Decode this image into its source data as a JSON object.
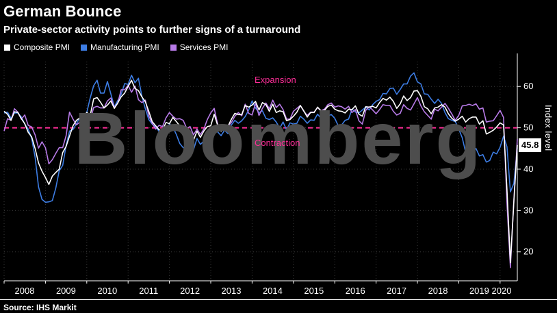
{
  "header": {
    "title": "German Bounce",
    "subtitle": "Private-sector activity points to further signs of a turnaround"
  },
  "source": "Source: IHS Markit",
  "chart_data": {
    "type": "line",
    "title": "German Bounce",
    "subtitle": "Private-sector activity points to further signs of a turnaround",
    "x_unit": "month",
    "x_start": "2008-01",
    "x_end": "2020-06",
    "x_tick_labels": [
      "2008",
      "2009",
      "2010",
      "2011",
      "2012",
      "2013",
      "2014",
      "2015",
      "2016",
      "2017",
      "2018",
      "2019",
      "2020"
    ],
    "ylabel": "Index level",
    "yticks": [
      20,
      30,
      40,
      50,
      60
    ],
    "ylim": [
      13,
      66
    ],
    "grid": "dotted",
    "legend_position": "top-left",
    "threshold": {
      "value": 50,
      "label_above": "Expansion",
      "label_below": "Contraction",
      "color": "#ff2e99"
    },
    "last_value_badge": "45.8",
    "watermark": "Bloomberg",
    "series": [
      {
        "name": "Composite PMI",
        "color": "#ffffff",
        "values": [
          54.0,
          53.3,
          51.8,
          53.9,
          53.7,
          52.2,
          51.0,
          48.9,
          47.8,
          45.0,
          41.5,
          39.5,
          38.0,
          36.3,
          38.3,
          39.2,
          40.0,
          44.0,
          45.5,
          48.0,
          50.5,
          51.8,
          52.4,
          52.7,
          53.7,
          53.0,
          57.0,
          57.3,
          56.2,
          54.8,
          55.5,
          56.5,
          54.7,
          56.0,
          57.5,
          58.4,
          60.0,
          61.5,
          59.5,
          59.0,
          57.5,
          56.3,
          54.0,
          51.5,
          50.5,
          49.5,
          49.4,
          51.3,
          51.0,
          52.5,
          51.5,
          50.5,
          49.3,
          48.1,
          47.5,
          47.0,
          49.2,
          47.7,
          49.2,
          50.3,
          50.5,
          53.3,
          50.6,
          49.2,
          50.2,
          50.4,
          52.1,
          53.5,
          53.2,
          53.2,
          55.4,
          55.0,
          55.5,
          56.4,
          54.3,
          56.1,
          55.6,
          54.0,
          55.7,
          53.7,
          54.1,
          53.9,
          51.7,
          52.0,
          52.8,
          53.8,
          55.4,
          54.1,
          52.6,
          53.7,
          53.7,
          55.0,
          54.1,
          54.2,
          55.2,
          55.5,
          54.5,
          54.1,
          54.0,
          53.6,
          54.5,
          54.4,
          55.3,
          53.3,
          52.8,
          55.1,
          55.0,
          55.2,
          54.8,
          56.1,
          57.1,
          56.7,
          57.4,
          56.4,
          54.7,
          55.8,
          57.7,
          56.6,
          57.3,
          58.9,
          59.0,
          57.6,
          55.1,
          54.6,
          53.4,
          54.8,
          55.0,
          55.6,
          55.0,
          53.4,
          52.3,
          51.6,
          52.1,
          52.8,
          51.4,
          52.2,
          52.6,
          52.6,
          50.9,
          51.7,
          48.5,
          48.9,
          49.4,
          50.2,
          51.2,
          50.7,
          35.0,
          17.4,
          32.3,
          45.8
        ]
      },
      {
        "name": "Manufacturing PMI",
        "color": "#3d7de4",
        "values": [
          53.6,
          53.8,
          52.3,
          53.6,
          53.6,
          52.6,
          50.9,
          49.7,
          47.4,
          42.9,
          35.7,
          32.7,
          32.0,
          32.1,
          32.4,
          35.4,
          39.6,
          40.9,
          45.7,
          49.2,
          49.6,
          51.0,
          52.4,
          52.7,
          53.7,
          57.2,
          60.2,
          61.5,
          58.4,
          58.4,
          61.2,
          58.2,
          55.1,
          56.6,
          58.1,
          60.7,
          60.5,
          62.7,
          60.9,
          62.0,
          57.7,
          54.6,
          52.0,
          50.9,
          50.3,
          49.1,
          47.9,
          48.4,
          51.0,
          50.2,
          48.4,
          46.2,
          45.2,
          45.0,
          43.0,
          44.7,
          47.4,
          46.0,
          46.8,
          46.0,
          49.8,
          50.3,
          49.0,
          48.1,
          49.4,
          48.6,
          50.7,
          51.8,
          51.1,
          51.7,
          52.7,
          54.3,
          56.5,
          54.8,
          53.7,
          54.1,
          52.3,
          52.0,
          52.4,
          51.4,
          49.9,
          51.4,
          49.5,
          51.2,
          50.9,
          51.1,
          52.8,
          52.1,
          51.1,
          51.9,
          51.8,
          53.3,
          52.3,
          52.1,
          52.9,
          53.2,
          52.3,
          50.5,
          50.7,
          51.8,
          52.1,
          54.5,
          53.8,
          53.6,
          54.3,
          55.0,
          54.3,
          55.6,
          56.4,
          56.8,
          58.3,
          58.2,
          59.5,
          59.6,
          58.1,
          59.3,
          60.6,
          60.6,
          62.5,
          63.3,
          61.1,
          60.6,
          58.2,
          58.1,
          56.9,
          55.9,
          56.9,
          55.9,
          53.7,
          52.2,
          51.8,
          51.5,
          49.7,
          47.6,
          44.1,
          44.4,
          44.3,
          45.0,
          43.2,
          43.5,
          41.7,
          42.1,
          44.1,
          43.7,
          45.3,
          48.0,
          45.4,
          34.5,
          36.6,
          45.2
        ]
      },
      {
        "name": "Services PMI",
        "color": "#b87be8",
        "values": [
          49.2,
          52.2,
          51.8,
          54.6,
          53.8,
          52.1,
          53.1,
          50.6,
          50.2,
          48.3,
          45.1,
          46.6,
          45.2,
          41.3,
          42.3,
          43.8,
          45.2,
          45.2,
          48.1,
          53.8,
          52.1,
          50.7,
          51.4,
          52.7,
          52.2,
          51.9,
          54.9,
          55.2,
          54.8,
          54.8,
          56.5,
          57.2,
          54.9,
          56.0,
          59.2,
          59.2,
          60.3,
          58.6,
          60.1,
          56.8,
          56.1,
          56.7,
          52.9,
          51.1,
          49.7,
          50.6,
          50.3,
          52.4,
          53.7,
          52.8,
          52.1,
          52.2,
          51.8,
          49.9,
          50.3,
          48.3,
          49.7,
          48.4,
          49.7,
          52.0,
          53.6,
          54.7,
          50.9,
          49.6,
          49.7,
          50.4,
          51.3,
          52.8,
          53.7,
          52.9,
          55.7,
          53.5,
          53.1,
          55.9,
          53.0,
          54.7,
          56.0,
          54.6,
          56.7,
          54.9,
          55.7,
          54.4,
          52.1,
          52.1,
          54.0,
          54.7,
          55.4,
          54.0,
          53.0,
          53.8,
          53.8,
          54.9,
          54.1,
          54.5,
          55.6,
          56.0,
          55.0,
          55.3,
          55.1,
          54.5,
          55.2,
          53.7,
          54.4,
          51.7,
          50.9,
          54.2,
          55.1,
          54.3,
          53.4,
          54.4,
          55.6,
          55.4,
          55.4,
          54.0,
          53.1,
          53.5,
          55.6,
          54.7,
          54.3,
          55.8,
          57.3,
          55.3,
          53.9,
          53.0,
          52.1,
          54.5,
          54.1,
          55.0,
          55.9,
          54.7,
          53.3,
          51.8,
          53.0,
          55.3,
          55.4,
          55.7,
          55.4,
          55.8,
          54.5,
          54.8,
          51.4,
          51.6,
          51.7,
          52.9,
          54.2,
          52.5,
          31.7,
          16.2,
          32.6,
          47.3
        ]
      }
    ]
  }
}
